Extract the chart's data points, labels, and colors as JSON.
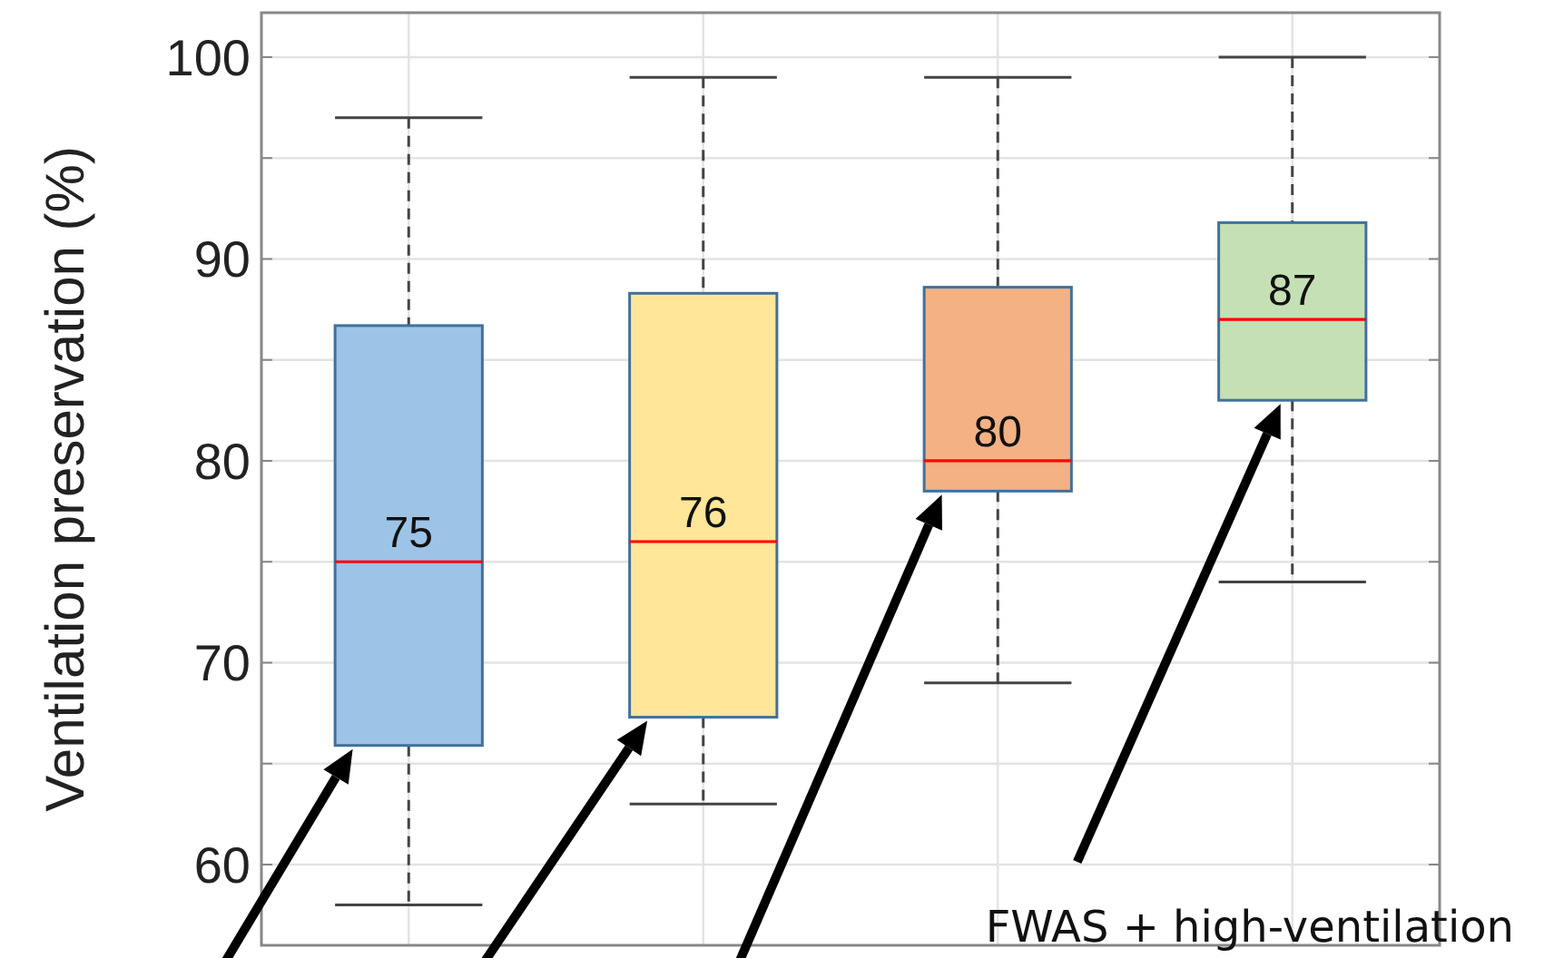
{
  "chart_data": {
    "type": "box",
    "ylabel": "Ventilation preservation (%)",
    "categories": [
      null,
      null,
      null,
      null
    ],
    "boxes": [
      {
        "low": 58,
        "q1": 65.9,
        "median": 75,
        "q3": 86.7,
        "high": 97
      },
      {
        "low": 63,
        "q1": 67.3,
        "median": 76,
        "q3": 88.3,
        "high": 99
      },
      {
        "low": 69,
        "q1": 78.5,
        "median": 80,
        "q3": 88.6,
        "high": 99
      },
      {
        "low": 74,
        "q1": 83,
        "median": 87,
        "q3": 91.8,
        "high": 100
      }
    ],
    "colors": [
      "#9dc3e6",
      "#ffe699",
      "#f4b183",
      "#c5e0b4"
    ],
    "value_labels": [
      "75",
      "76",
      "80",
      "87"
    ],
    "ylim": [
      56,
      102.2
    ],
    "yticks": [
      60,
      {
        "value": 65,
        "label": null
      },
      70,
      {
        "value": 75,
        "label": null
      },
      80,
      {
        "value": 85,
        "label": null
      },
      90,
      {
        "value": 95,
        "label": null
      },
      100
    ],
    "grid": true,
    "annotations": [
      "FWAS + high-ventilation"
    ]
  }
}
